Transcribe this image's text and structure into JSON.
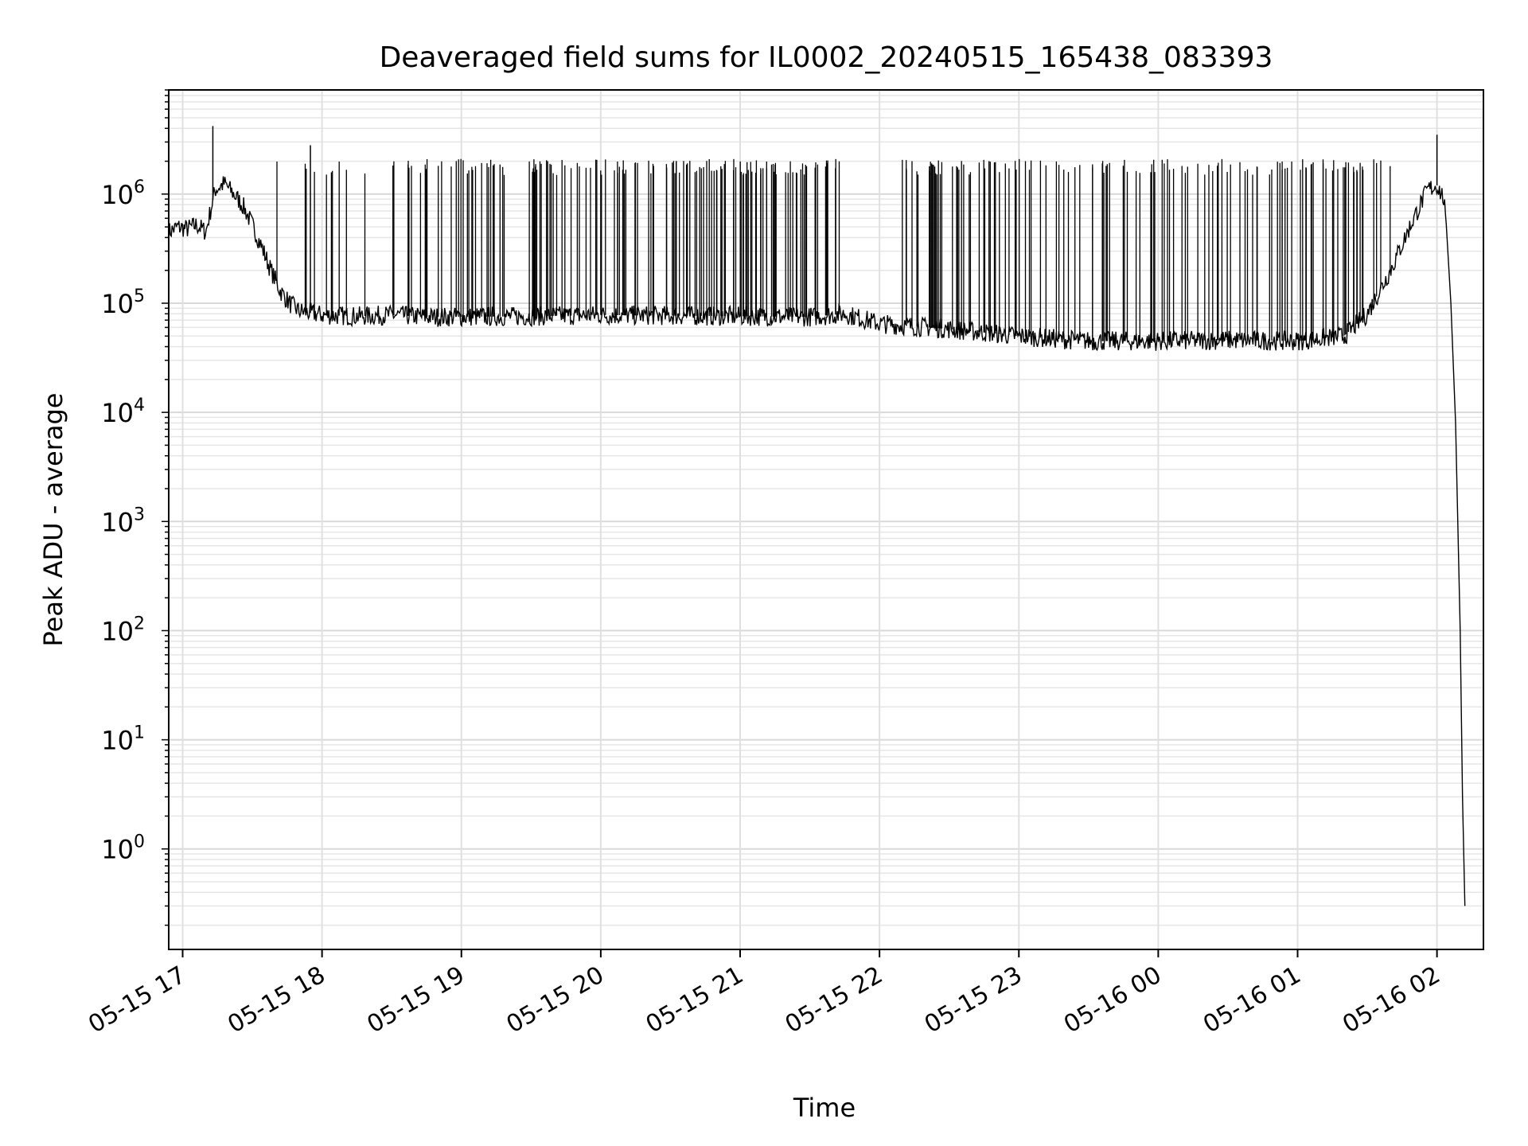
{
  "chart_data": {
    "type": "line",
    "title": "Deaveraged field sums for IL0002_20240515_165438_083393",
    "xlabel": "Time",
    "ylabel": "Peak ADU - average",
    "yscale": "log",
    "ylim": [
      0.12,
      9000000
    ],
    "xlim": [
      "2024-05-15 16:54",
      "2024-05-16 02:20"
    ],
    "grid": true,
    "legend": "none",
    "line_color": "#000000",
    "x_ticks": [
      "05-15 17",
      "05-15 18",
      "05-15 19",
      "05-15 20",
      "05-15 21",
      "05-15 22",
      "05-15 23",
      "05-16 00",
      "05-16 01",
      "05-16 02"
    ],
    "y_ticks": [
      {
        "value": 1,
        "base": "10",
        "exp": "0"
      },
      {
        "value": 10,
        "base": "10",
        "exp": "1"
      },
      {
        "value": 100,
        "base": "10",
        "exp": "2"
      },
      {
        "value": 1000,
        "base": "10",
        "exp": "3"
      },
      {
        "value": 10000,
        "base": "10",
        "exp": "4"
      },
      {
        "value": 100000,
        "base": "10",
        "exp": "5"
      },
      {
        "value": 1000000,
        "base": "10",
        "exp": "6"
      }
    ],
    "series": [
      {
        "x": [
          "2024-05-15 16:54",
          "2024-05-15 16:58",
          "2024-05-15 17:02",
          "2024-05-15 17:06",
          "2024-05-15 17:10",
          "2024-05-15 17:14",
          "2024-05-15 17:18",
          "2024-05-15 17:22",
          "2024-05-15 17:26",
          "2024-05-15 17:30",
          "2024-05-15 17:34",
          "2024-05-15 17:38",
          "2024-05-15 17:42",
          "2024-05-15 17:46",
          "2024-05-15 17:50",
          "2024-05-15 18:00",
          "2024-05-15 18:15",
          "2024-05-15 18:30",
          "2024-05-15 18:45",
          "2024-05-15 19:00",
          "2024-05-15 19:30",
          "2024-05-15 20:00",
          "2024-05-15 20:30",
          "2024-05-15 21:00",
          "2024-05-15 21:30",
          "2024-05-15 21:45",
          "2024-05-15 22:00",
          "2024-05-15 22:30",
          "2024-05-15 23:00",
          "2024-05-15 23:30",
          "2024-05-16 00:00",
          "2024-05-16 00:30",
          "2024-05-16 01:00",
          "2024-05-16 01:20",
          "2024-05-16 01:30",
          "2024-05-16 01:40",
          "2024-05-16 01:50",
          "2024-05-16 01:56",
          "2024-05-16 02:00",
          "2024-05-16 02:03",
          "2024-05-16 02:06",
          "2024-05-16 02:08",
          "2024-05-16 02:10",
          "2024-05-16 02:11",
          "2024-05-16 02:12"
        ],
        "y": [
          450000,
          500000,
          480000,
          520000,
          450000,
          1100000,
          1250000,
          1000000,
          780000,
          520000,
          330000,
          200000,
          130000,
          100000,
          85000,
          78000,
          76000,
          78000,
          75000,
          75000,
          76000,
          78000,
          77000,
          76000,
          75000,
          80000,
          65000,
          58000,
          50000,
          45000,
          45000,
          46000,
          45000,
          50000,
          80000,
          200000,
          600000,
          1100000,
          1200000,
          900000,
          100000,
          8000,
          100,
          3,
          0.3
        ]
      }
    ],
    "spikes": [
      {
        "x": "2024-05-15 17:13",
        "y": 4200000
      },
      {
        "x": "2024-05-15 17:55",
        "y": 2800000
      },
      {
        "x": "2024-05-16 02:00",
        "y": 3500000
      }
    ],
    "spike_band_y": 2000000
  }
}
